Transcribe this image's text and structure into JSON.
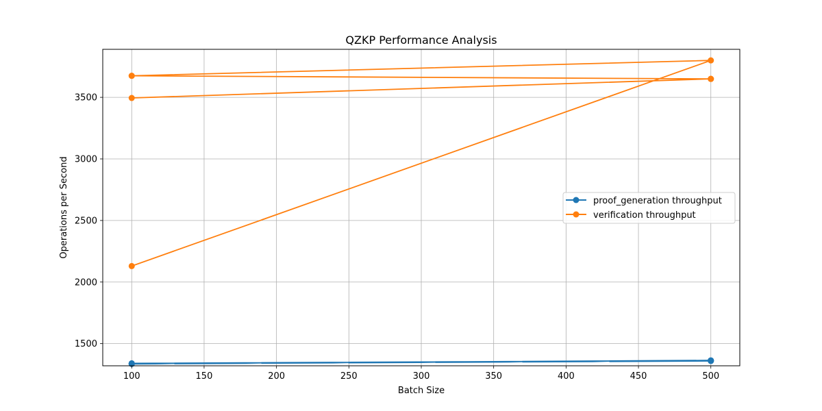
{
  "chart_data": {
    "type": "line",
    "title": "QZKP Performance Analysis",
    "xlabel": "Batch Size",
    "ylabel": "Operations per Second",
    "xlim": [
      80,
      520
    ],
    "ylim": [
      1320,
      3890
    ],
    "xticks": [
      100,
      150,
      200,
      250,
      300,
      350,
      400,
      450,
      500
    ],
    "yticks": [
      1500,
      2000,
      2500,
      3000,
      3500
    ],
    "grid": true,
    "legend_position": "center-right",
    "series": [
      {
        "name": "proof_generation throughput",
        "color": "#1f77b4",
        "x": [
          100,
          500,
          100,
          500,
          100,
          500,
          100,
          500,
          100,
          500
        ],
        "y": [
          1340,
          1362,
          1336,
          1359,
          1338,
          1361,
          1335,
          1364,
          1337,
          1360
        ]
      },
      {
        "name": "verification throughput",
        "color": "#ff7f0e",
        "x": [
          100,
          500,
          100,
          500,
          100,
          500,
          100,
          500
        ],
        "y": [
          2130,
          3800,
          3675,
          3650,
          3495,
          3650,
          3675,
          3650
        ]
      }
    ]
  }
}
